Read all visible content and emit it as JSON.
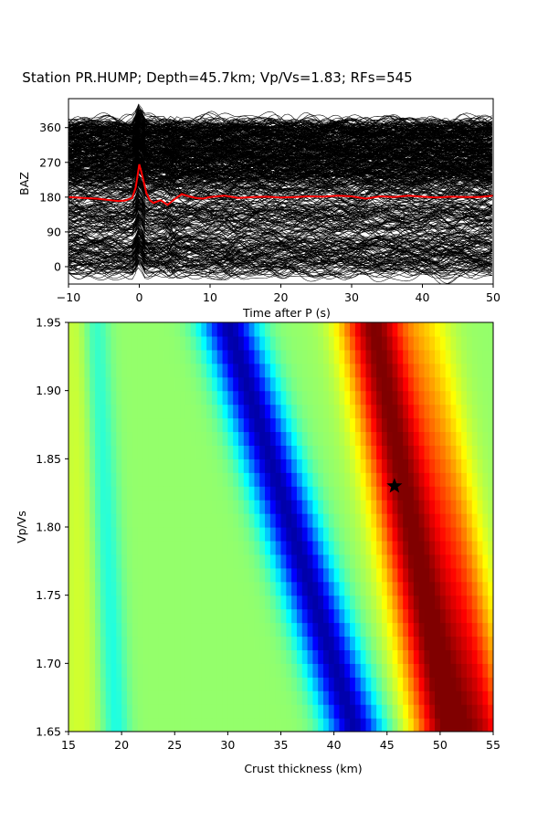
{
  "chart_data": [
    {
      "type": "line",
      "title": "Station PR.HUMP; Depth=45.7km; Vp/Vs=1.83; RFs=545",
      "xlabel": "Time after P (s)",
      "ylabel": "BAZ",
      "xlim": [
        -10,
        50
      ],
      "ylim": [
        -45,
        435
      ],
      "xticks": [
        "−10",
        "0",
        "10",
        "20",
        "30",
        "40",
        "50"
      ],
      "xtick_values": [
        -10,
        0,
        10,
        20,
        30,
        40,
        50
      ],
      "yticks": [
        "0",
        "90",
        "180",
        "270",
        "360"
      ],
      "ytick_values": [
        0,
        90,
        180,
        270,
        360
      ],
      "trace_count": 545,
      "trace_color": "#000000",
      "stack_color": "#ff0000",
      "stack_series": {
        "name": "",
        "x": [
          -10,
          -8,
          -6,
          -4,
          -3,
          -2,
          -1,
          -0.5,
          0,
          0.5,
          1,
          1.5,
          2,
          3,
          4,
          5,
          6,
          7,
          8,
          9,
          10,
          12,
          14,
          16,
          18,
          20,
          22,
          24,
          26,
          28,
          30,
          32,
          34,
          36,
          38,
          40,
          42,
          44,
          46,
          48,
          50
        ],
        "y": [
          180,
          178,
          176,
          172,
          170,
          171,
          178,
          205,
          265,
          230,
          190,
          172,
          165,
          172,
          160,
          175,
          188,
          182,
          178,
          176,
          180,
          184,
          178,
          180,
          181,
          179,
          180,
          182,
          181,
          184,
          182,
          176,
          182,
          180,
          184,
          181,
          179,
          181,
          180,
          180,
          184
        ]
      },
      "grid": false
    },
    {
      "type": "heatmap",
      "xlabel": "Crust thickness (km)",
      "ylabel": "Vp/Vs",
      "xlim": [
        15,
        55
      ],
      "ylim": [
        1.65,
        1.95
      ],
      "xticks": [
        "15",
        "20",
        "25",
        "30",
        "35",
        "40",
        "45",
        "50",
        "55"
      ],
      "xtick_values": [
        15,
        20,
        25,
        30,
        35,
        40,
        45,
        50,
        55
      ],
      "yticks": [
        "1.65",
        "1.70",
        "1.75",
        "1.80",
        "1.85",
        "1.90",
        "1.95"
      ],
      "ytick_values": [
        1.65,
        1.7,
        1.75,
        1.8,
        1.85,
        1.9,
        1.95
      ],
      "colormap": "jet",
      "best_fit": {
        "thickness": 45.7,
        "vpvs": 1.83,
        "marker": "star",
        "color": "#000000"
      },
      "grid": false
    }
  ]
}
